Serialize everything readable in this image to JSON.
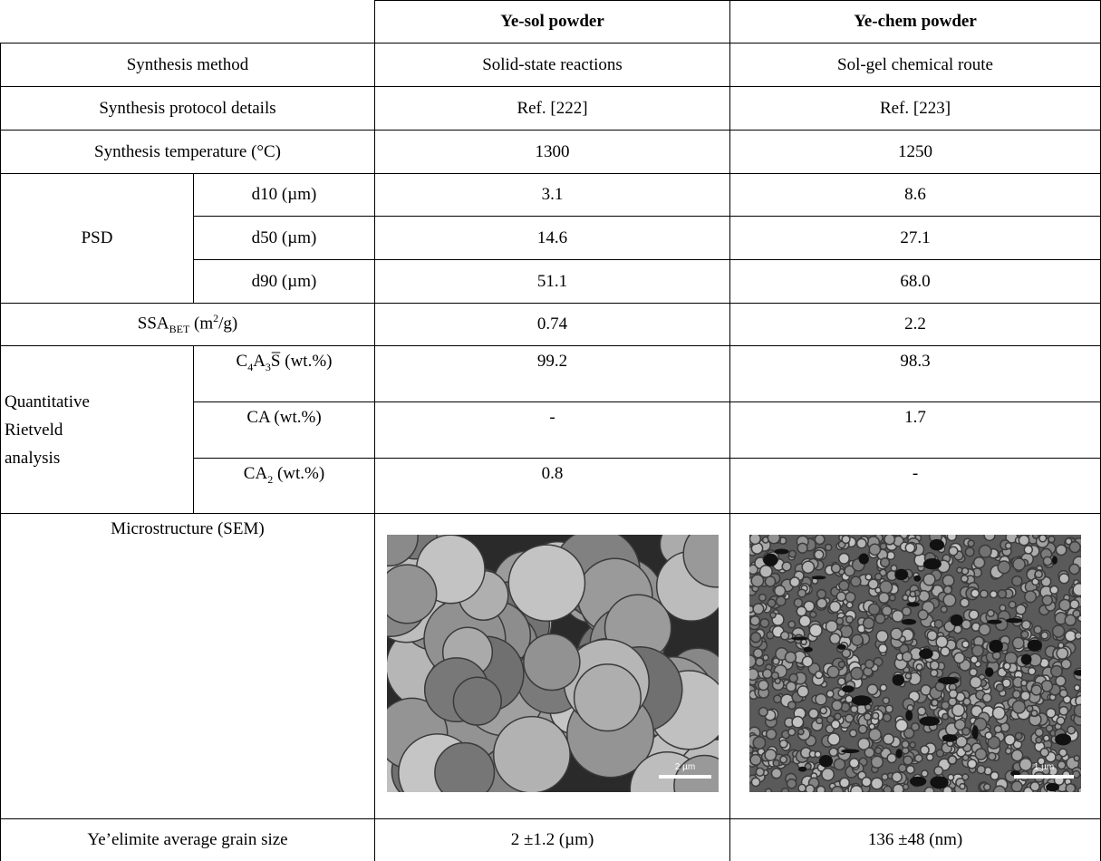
{
  "table": {
    "header": [
      "Ye-sol powder",
      "Ye-chem powder"
    ],
    "rows": [
      [
        "Synthesis method",
        "Solid-state reactions",
        "Sol-gel chemical route"
      ],
      [
        "Synthesis protocol details",
        "Ref. [222]",
        "Ref. [223]"
      ],
      [
        "Synthesis temperature (°C)",
        "1300",
        "1250"
      ]
    ],
    "psd": {
      "label": "PSD",
      "rows": [
        [
          "d10 (µm)",
          "3.1",
          "8.6"
        ],
        [
          "d50 (µm)",
          "14.6",
          "27.1"
        ],
        [
          "d90 (µm)",
          "51.1",
          "68.0"
        ]
      ]
    },
    "ssa": {
      "label": [
        {
          "text": "SSA"
        },
        {
          "text": "BET",
          "sub": true
        },
        {
          "text": " (m"
        },
        {
          "text": "2",
          "sup": true
        },
        {
          "text": "/g)"
        }
      ],
      "values": [
        "0.74",
        "2.2"
      ]
    },
    "rietveld": {
      "label": "Quantitative Rietveld analysis",
      "rows": [
        [
          [
            {
              "text": "C"
            },
            {
              "text": "4",
              "sub": true
            },
            {
              "text": "A"
            },
            {
              "text": "3",
              "sub": true
            },
            {
              "text": "S̅ (wt.%)"
            }
          ],
          "99.2",
          "98.3"
        ],
        [
          "CA (wt.%)",
          "-",
          "1.7"
        ],
        [
          [
            {
              "text": "CA"
            },
            {
              "text": "2",
              "sub": true
            },
            {
              "text": " (wt.%)"
            }
          ],
          "0.8",
          "-"
        ]
      ]
    },
    "microstructure": {
      "label": "Microstructure (SEM)",
      "scale_bars": [
        "2 µm",
        "1 µm"
      ]
    },
    "grain_size": [
      "Ye’elimite average grain size",
      "2 ±1.2 (µm)",
      "136 ±48 (nm)"
    ]
  }
}
